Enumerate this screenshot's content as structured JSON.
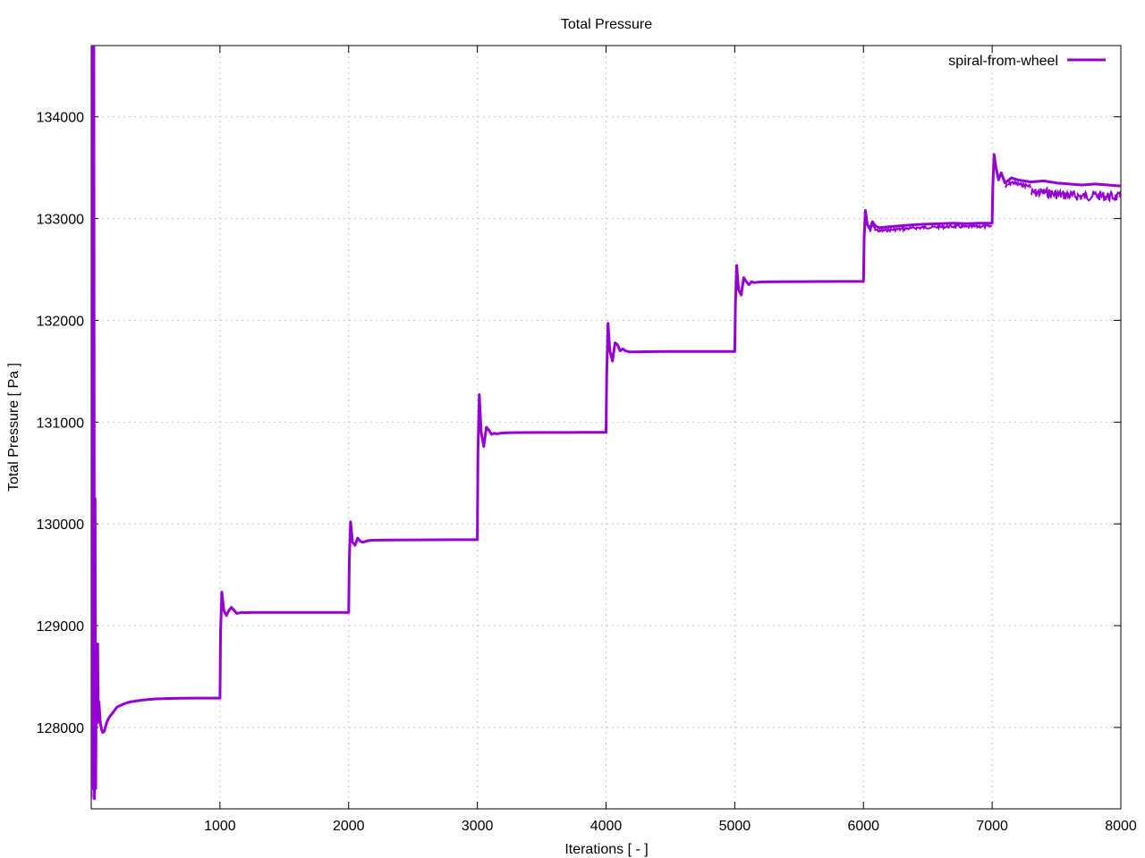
{
  "chart_data": {
    "type": "line",
    "title": "Total Pressure",
    "xlabel": "Iterations [ - ]",
    "ylabel": "Total Pressure [ Pa ]",
    "xlim": [
      0,
      8000
    ],
    "ylim": [
      127200,
      134700
    ],
    "xticks": [
      1000,
      2000,
      3000,
      4000,
      5000,
      6000,
      7000,
      8000
    ],
    "yticks": [
      128000,
      129000,
      130000,
      131000,
      132000,
      133000,
      134000
    ],
    "grid": true,
    "legend_position": "top-right",
    "series": [
      {
        "name": "spiral-from-wheel",
        "color": "#9400d3",
        "x": [
          0,
          10,
          15,
          20,
          25,
          30,
          35,
          40,
          45,
          50,
          55,
          60,
          70,
          80,
          90,
          100,
          110,
          120,
          140,
          170,
          200,
          250,
          300,
          400,
          500,
          600,
          700,
          800,
          900,
          1000,
          1005,
          1015,
          1030,
          1050,
          1070,
          1090,
          1110,
          1130,
          1150,
          1170,
          1200,
          1250,
          1300,
          1400,
          1600,
          1800,
          2000,
          2005,
          2015,
          2030,
          2050,
          2070,
          2090,
          2110,
          2130,
          2150,
          2170,
          2200,
          2300,
          2500,
          2800,
          3000,
          3005,
          3015,
          3030,
          3050,
          3070,
          3090,
          3110,
          3130,
          3150,
          3180,
          3220,
          3300,
          3500,
          3800,
          4000,
          4005,
          4015,
          4030,
          4050,
          4070,
          4090,
          4110,
          4130,
          4150,
          4180,
          4220,
          4300,
          4500,
          4800,
          5000,
          5005,
          5015,
          5030,
          5050,
          5070,
          5090,
          5110,
          5130,
          5150,
          5180,
          5220,
          5300,
          5500,
          5800,
          6000,
          6005,
          6015,
          6030,
          6050,
          6070,
          6090,
          6120,
          6200,
          6300,
          6400,
          6500,
          6600,
          6700,
          6800,
          6900,
          7000,
          7005,
          7015,
          7030,
          7050,
          7070,
          7100,
          7150,
          7200,
          7300,
          7400,
          7500,
          7600,
          7700,
          7800,
          7900,
          8000
        ],
        "y": [
          127300,
          135000,
          127400,
          134700,
          127300,
          130250,
          127400,
          128800,
          128200,
          128820,
          128050,
          128250,
          128050,
          127980,
          127950,
          127960,
          128000,
          128050,
          128100,
          128150,
          128200,
          128230,
          128250,
          128270,
          128280,
          128285,
          128287,
          128288,
          128288,
          128288,
          128950,
          129330,
          129150,
          129100,
          129150,
          129180,
          129150,
          129120,
          129125,
          129130,
          129128,
          129130,
          129130,
          129130,
          129130,
          129130,
          129130,
          129650,
          130020,
          129820,
          129790,
          129860,
          129830,
          129820,
          129828,
          129835,
          129838,
          129840,
          129842,
          129843,
          129844,
          129844,
          130700,
          131270,
          130900,
          130760,
          130950,
          130920,
          130880,
          130890,
          130885,
          130890,
          130895,
          130897,
          130898,
          130899,
          130899,
          131450,
          131970,
          131700,
          131600,
          131780,
          131760,
          131700,
          131720,
          131700,
          131690,
          131690,
          131692,
          131694,
          131695,
          131695,
          132150,
          132540,
          132300,
          132250,
          132420,
          132380,
          132350,
          132380,
          132370,
          132375,
          132378,
          132380,
          132381,
          132382,
          132382,
          132800,
          133080,
          132940,
          132900,
          132970,
          132930,
          132910,
          132920,
          132930,
          132940,
          132945,
          132950,
          132955,
          132950,
          132955,
          132955,
          133300,
          133630,
          133500,
          133380,
          133450,
          133350,
          133400,
          133380,
          133360,
          133370,
          133350,
          133340,
          133330,
          133340,
          133330,
          133320
        ]
      }
    ],
    "noise_bands": [
      {
        "x_start": 6050,
        "x_end": 7000,
        "amplitude": 45
      },
      {
        "x_start": 7100,
        "x_end": 7300,
        "amplitude": 60
      },
      {
        "x_start": 7300,
        "x_end": 8000,
        "amplitude": 160
      }
    ]
  }
}
